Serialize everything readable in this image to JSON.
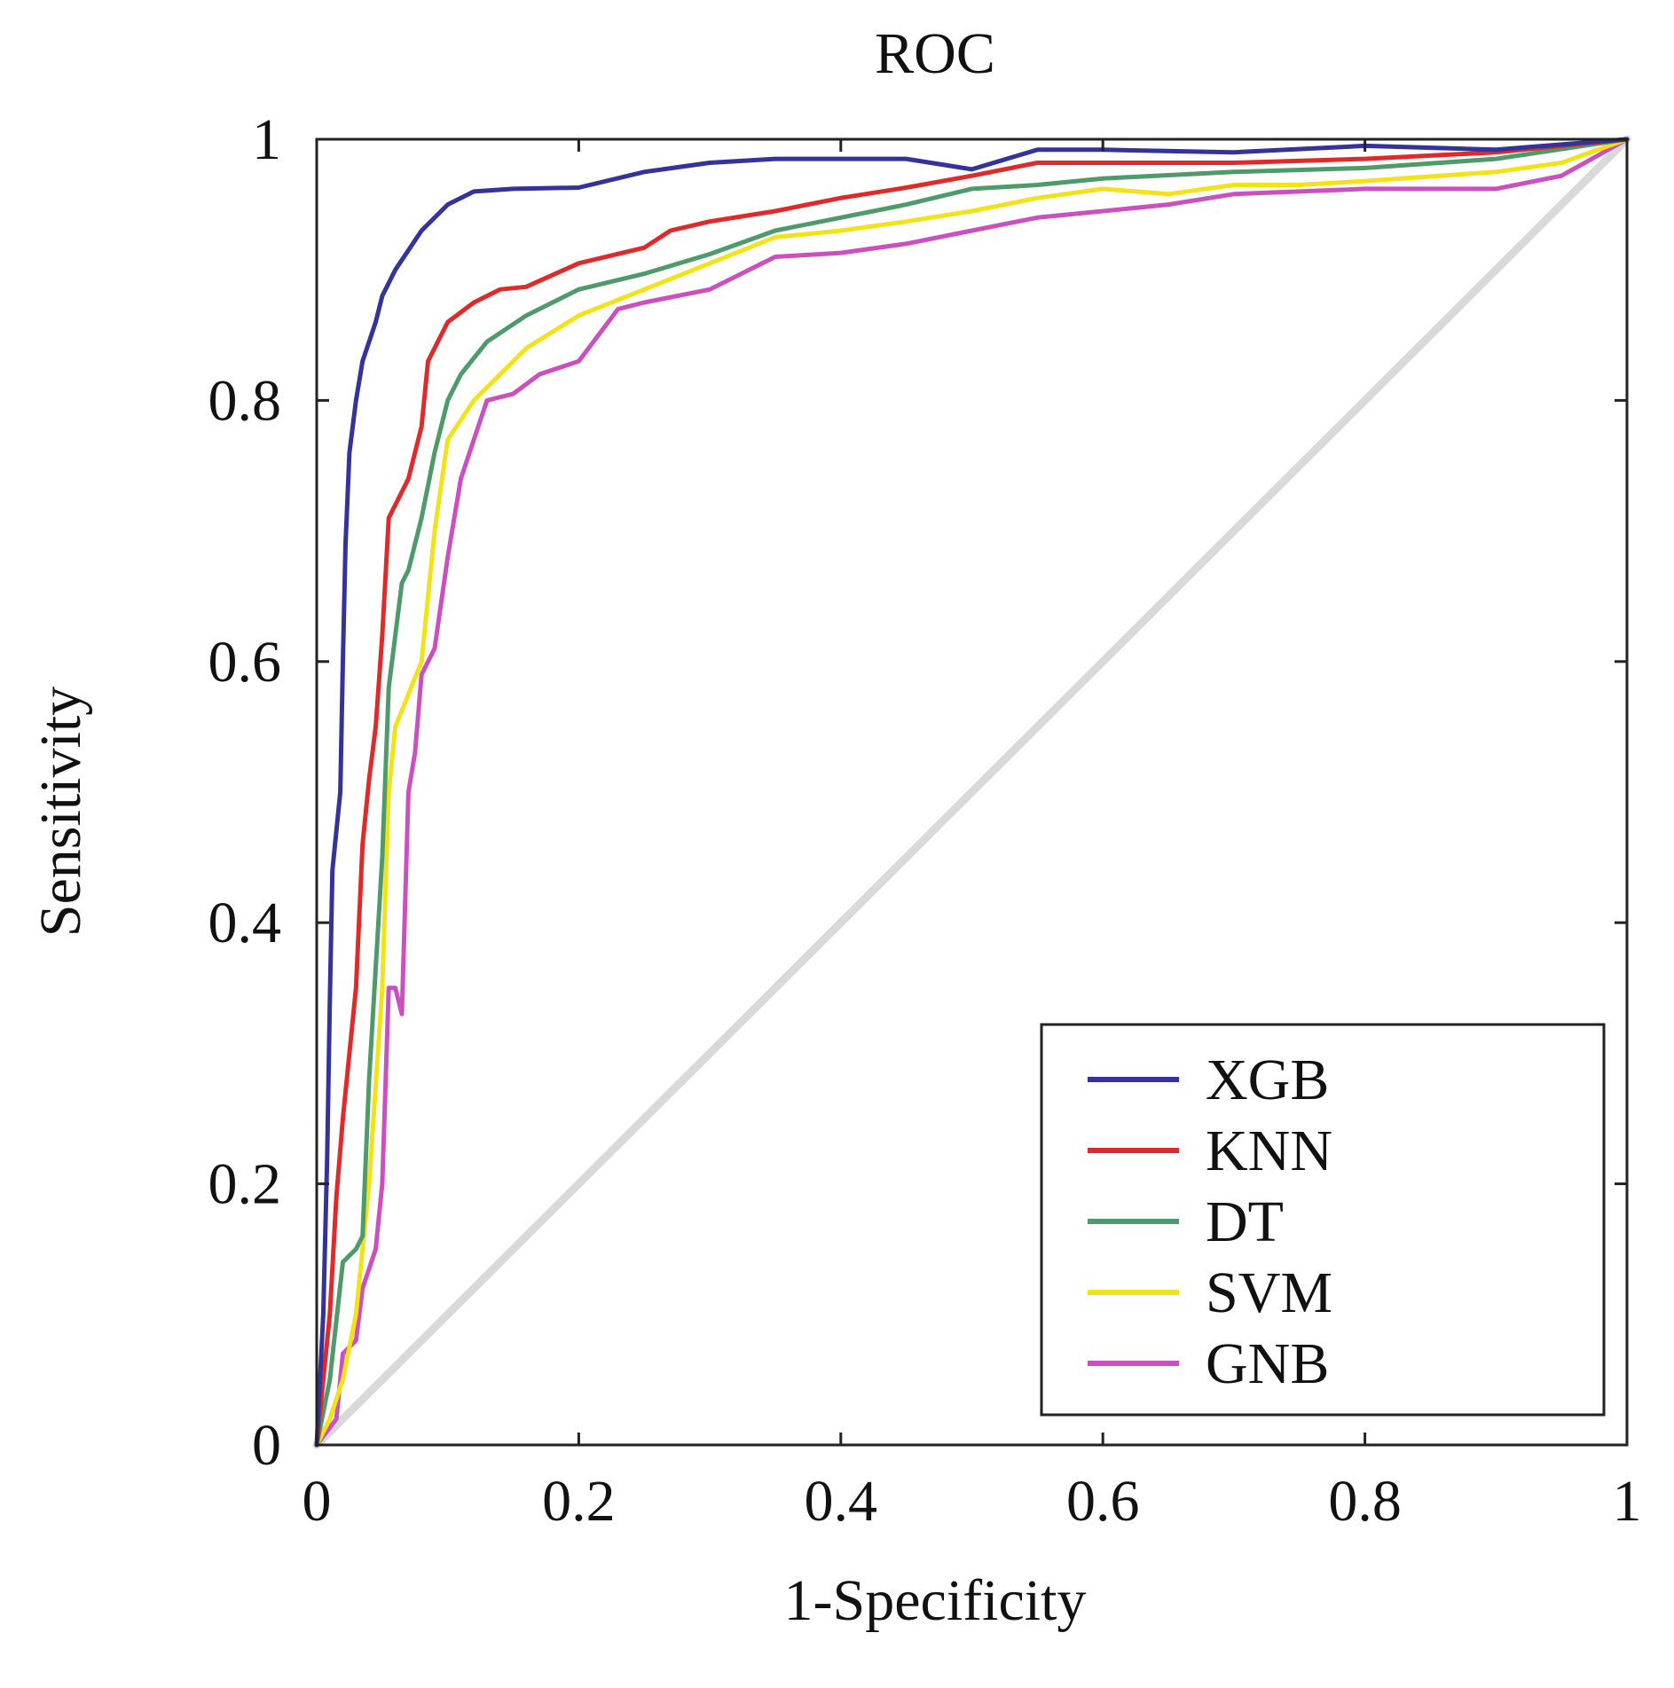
{
  "chart_data": {
    "type": "line",
    "title": "ROC",
    "xlabel": "1-Specificity",
    "ylabel": "Sensitivity",
    "xlim": [
      0,
      1
    ],
    "ylim": [
      0,
      1
    ],
    "xticks": [
      0,
      0.2,
      0.4,
      0.6,
      0.8,
      1
    ],
    "yticks": [
      0,
      0.2,
      0.4,
      0.6,
      0.8,
      1
    ],
    "xtick_labels": [
      "0",
      "0.2",
      "0.4",
      "0.6",
      "0.8",
      "1"
    ],
    "ytick_labels": [
      "0",
      "0.2",
      "0.4",
      "0.6",
      "0.8",
      "1"
    ],
    "grid": false,
    "legend_position": "bottom-right",
    "diagonal": {
      "points": [
        [
          0,
          0
        ],
        [
          1,
          1
        ]
      ],
      "color": "#d9d9d9"
    },
    "series": [
      {
        "name": "XGB",
        "color": "#33339a",
        "points": [
          [
            0,
            0
          ],
          [
            0.005,
            0.1
          ],
          [
            0.008,
            0.22
          ],
          [
            0.01,
            0.34
          ],
          [
            0.012,
            0.44
          ],
          [
            0.018,
            0.5
          ],
          [
            0.02,
            0.6
          ],
          [
            0.022,
            0.69
          ],
          [
            0.025,
            0.76
          ],
          [
            0.03,
            0.8
          ],
          [
            0.035,
            0.83
          ],
          [
            0.045,
            0.86
          ],
          [
            0.05,
            0.88
          ],
          [
            0.06,
            0.9
          ],
          [
            0.08,
            0.93
          ],
          [
            0.1,
            0.95
          ],
          [
            0.12,
            0.96
          ],
          [
            0.15,
            0.962
          ],
          [
            0.2,
            0.963
          ],
          [
            0.25,
            0.975
          ],
          [
            0.3,
            0.982
          ],
          [
            0.35,
            0.985
          ],
          [
            0.45,
            0.985
          ],
          [
            0.5,
            0.977
          ],
          [
            0.55,
            0.992
          ],
          [
            0.6,
            0.992
          ],
          [
            0.7,
            0.99
          ],
          [
            0.8,
            0.995
          ],
          [
            0.9,
            0.992
          ],
          [
            1,
            1
          ]
        ]
      },
      {
        "name": "KNN",
        "color": "#e02a2a",
        "points": [
          [
            0,
            0
          ],
          [
            0.01,
            0.1
          ],
          [
            0.015,
            0.19
          ],
          [
            0.02,
            0.25
          ],
          [
            0.03,
            0.35
          ],
          [
            0.035,
            0.46
          ],
          [
            0.04,
            0.51
          ],
          [
            0.045,
            0.55
          ],
          [
            0.05,
            0.62
          ],
          [
            0.055,
            0.71
          ],
          [
            0.06,
            0.72
          ],
          [
            0.07,
            0.74
          ],
          [
            0.08,
            0.78
          ],
          [
            0.085,
            0.83
          ],
          [
            0.1,
            0.86
          ],
          [
            0.12,
            0.875
          ],
          [
            0.14,
            0.885
          ],
          [
            0.16,
            0.887
          ],
          [
            0.2,
            0.905
          ],
          [
            0.25,
            0.917
          ],
          [
            0.27,
            0.93
          ],
          [
            0.3,
            0.937
          ],
          [
            0.35,
            0.945
          ],
          [
            0.4,
            0.955
          ],
          [
            0.45,
            0.963
          ],
          [
            0.5,
            0.972
          ],
          [
            0.55,
            0.982
          ],
          [
            0.6,
            0.982
          ],
          [
            0.7,
            0.982
          ],
          [
            0.8,
            0.985
          ],
          [
            0.9,
            0.99
          ],
          [
            1,
            1
          ]
        ]
      },
      {
        "name": "DT",
        "color": "#4f9a6a",
        "points": [
          [
            0,
            0
          ],
          [
            0.01,
            0.05
          ],
          [
            0.02,
            0.14
          ],
          [
            0.03,
            0.15
          ],
          [
            0.035,
            0.16
          ],
          [
            0.04,
            0.28
          ],
          [
            0.05,
            0.45
          ],
          [
            0.055,
            0.58
          ],
          [
            0.06,
            0.62
          ],
          [
            0.065,
            0.66
          ],
          [
            0.07,
            0.67
          ],
          [
            0.08,
            0.71
          ],
          [
            0.09,
            0.76
          ],
          [
            0.1,
            0.8
          ],
          [
            0.11,
            0.82
          ],
          [
            0.13,
            0.845
          ],
          [
            0.16,
            0.865
          ],
          [
            0.2,
            0.885
          ],
          [
            0.25,
            0.897
          ],
          [
            0.3,
            0.912
          ],
          [
            0.35,
            0.93
          ],
          [
            0.4,
            0.94
          ],
          [
            0.45,
            0.95
          ],
          [
            0.5,
            0.962
          ],
          [
            0.55,
            0.965
          ],
          [
            0.6,
            0.97
          ],
          [
            0.7,
            0.975
          ],
          [
            0.8,
            0.978
          ],
          [
            0.9,
            0.985
          ],
          [
            1,
            1
          ]
        ]
      },
      {
        "name": "SVM",
        "color": "#f2e21a",
        "points": [
          [
            0,
            0
          ],
          [
            0.01,
            0.02
          ],
          [
            0.02,
            0.05
          ],
          [
            0.03,
            0.1
          ],
          [
            0.04,
            0.2
          ],
          [
            0.05,
            0.35
          ],
          [
            0.055,
            0.5
          ],
          [
            0.06,
            0.55
          ],
          [
            0.08,
            0.6
          ],
          [
            0.09,
            0.7
          ],
          [
            0.1,
            0.77
          ],
          [
            0.12,
            0.8
          ],
          [
            0.14,
            0.82
          ],
          [
            0.16,
            0.84
          ],
          [
            0.2,
            0.865
          ],
          [
            0.25,
            0.885
          ],
          [
            0.3,
            0.905
          ],
          [
            0.35,
            0.925
          ],
          [
            0.4,
            0.93
          ],
          [
            0.45,
            0.937
          ],
          [
            0.5,
            0.945
          ],
          [
            0.55,
            0.955
          ],
          [
            0.6,
            0.962
          ],
          [
            0.65,
            0.958
          ],
          [
            0.7,
            0.965
          ],
          [
            0.75,
            0.965
          ],
          [
            0.8,
            0.968
          ],
          [
            0.9,
            0.975
          ],
          [
            0.95,
            0.982
          ],
          [
            1,
            1
          ]
        ]
      },
      {
        "name": "GNB",
        "color": "#cc4fbf",
        "points": [
          [
            0,
            0
          ],
          [
            0.015,
            0.02
          ],
          [
            0.02,
            0.07
          ],
          [
            0.03,
            0.08
          ],
          [
            0.035,
            0.12
          ],
          [
            0.045,
            0.15
          ],
          [
            0.05,
            0.2
          ],
          [
            0.055,
            0.35
          ],
          [
            0.06,
            0.35
          ],
          [
            0.065,
            0.33
          ],
          [
            0.07,
            0.5
          ],
          [
            0.075,
            0.53
          ],
          [
            0.08,
            0.59
          ],
          [
            0.09,
            0.61
          ],
          [
            0.1,
            0.68
          ],
          [
            0.11,
            0.74
          ],
          [
            0.12,
            0.77
          ],
          [
            0.13,
            0.8
          ],
          [
            0.15,
            0.805
          ],
          [
            0.17,
            0.82
          ],
          [
            0.2,
            0.83
          ],
          [
            0.23,
            0.87
          ],
          [
            0.25,
            0.875
          ],
          [
            0.3,
            0.885
          ],
          [
            0.35,
            0.91
          ],
          [
            0.4,
            0.913
          ],
          [
            0.45,
            0.92
          ],
          [
            0.5,
            0.93
          ],
          [
            0.55,
            0.94
          ],
          [
            0.6,
            0.945
          ],
          [
            0.65,
            0.95
          ],
          [
            0.7,
            0.958
          ],
          [
            0.8,
            0.962
          ],
          [
            0.9,
            0.962
          ],
          [
            0.95,
            0.972
          ],
          [
            1,
            1
          ]
        ]
      }
    ]
  }
}
